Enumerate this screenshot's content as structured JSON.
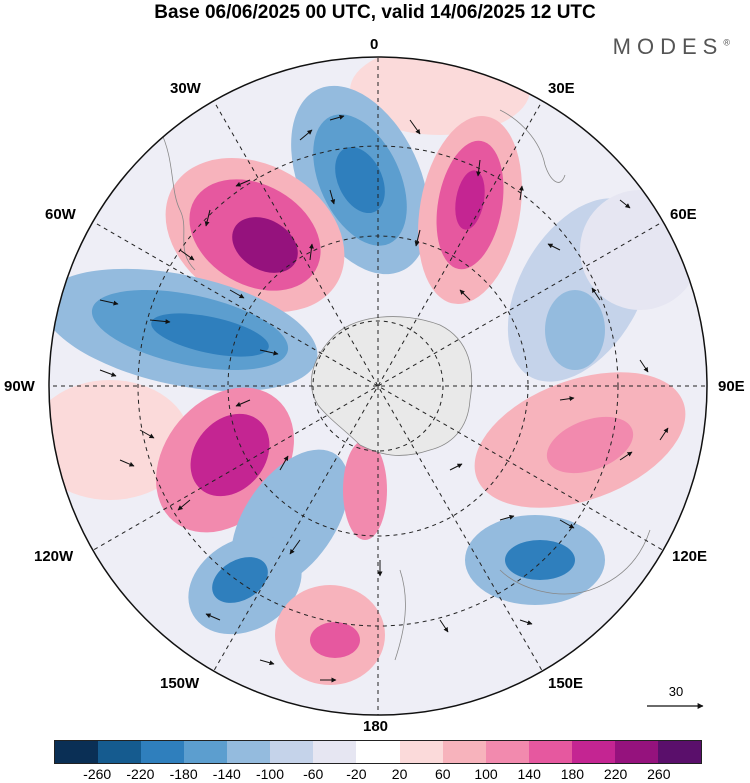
{
  "title": "Base 06/06/2025 00 UTC, valid 14/06/2025 12 UTC",
  "brand": "MODES",
  "brand_mark": "®",
  "longitude_labels": {
    "top": "0",
    "bottom": "180",
    "w30": "30W",
    "e30": "30E",
    "w60": "60W",
    "e60": "60E",
    "w90": "90W",
    "e90": "90E",
    "w120": "120W",
    "e120": "120E",
    "w150": "150W",
    "e150": "150E"
  },
  "vector_reference": "30",
  "colorbar": {
    "colors": [
      "#0a2f55",
      "#155b8f",
      "#2f7fbd",
      "#5c9ecf",
      "#94bbde",
      "#c5d3ea",
      "#e6e6f2",
      "#ffffff",
      "#fbdada",
      "#f7b3bc",
      "#f28aae",
      "#e6589f",
      "#c42592",
      "#95127d",
      "#5a0f6b"
    ],
    "tick_labels": [
      "-260",
      "-220",
      "-180",
      "-140",
      "-100",
      "-60",
      "-20",
      "20",
      "60",
      "100",
      "140",
      "180",
      "220",
      "260"
    ]
  },
  "anomaly_colors": {
    "strong_negative": "#2f7fbd",
    "moderate_negative": "#94bbde",
    "weak_negative": "#e6e6f2",
    "weak_positive": "#fbdada",
    "moderate_positive": "#f28aae",
    "strong_positive": "#95127d",
    "land": "#e9e9e9",
    "coast": "#888888"
  }
}
